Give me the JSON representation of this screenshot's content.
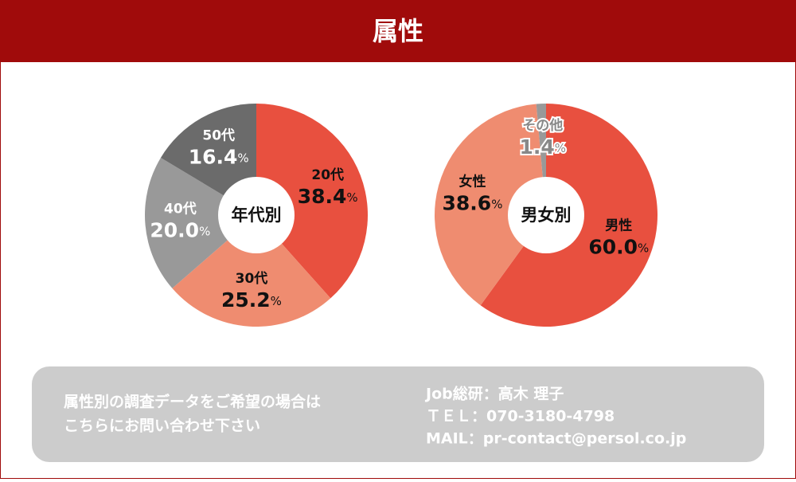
{
  "header": {
    "title": "属性"
  },
  "chart_data": [
    {
      "type": "donut",
      "center_label": "年代別",
      "categories": [
        "20代",
        "30代",
        "40代",
        "50代"
      ],
      "values": [
        38.4,
        25.2,
        20.0,
        16.4
      ],
      "value_labels": [
        "38.4%",
        "25.2%",
        "20.0%",
        "16.4%"
      ],
      "colors": [
        "#e8503f",
        "#ef8c70",
        "#999999",
        "#6b6b6b"
      ]
    },
    {
      "type": "donut",
      "center_label": "男女別",
      "categories": [
        "男性",
        "女性",
        "その他"
      ],
      "values": [
        60.0,
        38.6,
        1.4
      ],
      "value_labels": [
        "60.0%",
        "38.6%",
        "1.4%"
      ],
      "colors": [
        "#e8503f",
        "#ef8c70",
        "#999999"
      ]
    }
  ],
  "footer": {
    "note": [
      "属性別の調査データをご希望の場合は",
      "こちらにお問い合わせ下さい"
    ],
    "contact": [
      "Job総研：高木 理子",
      "ＴＥＬ：070-3180-4798",
      "MAIL：pr-contact@persol.co.jp"
    ]
  }
}
